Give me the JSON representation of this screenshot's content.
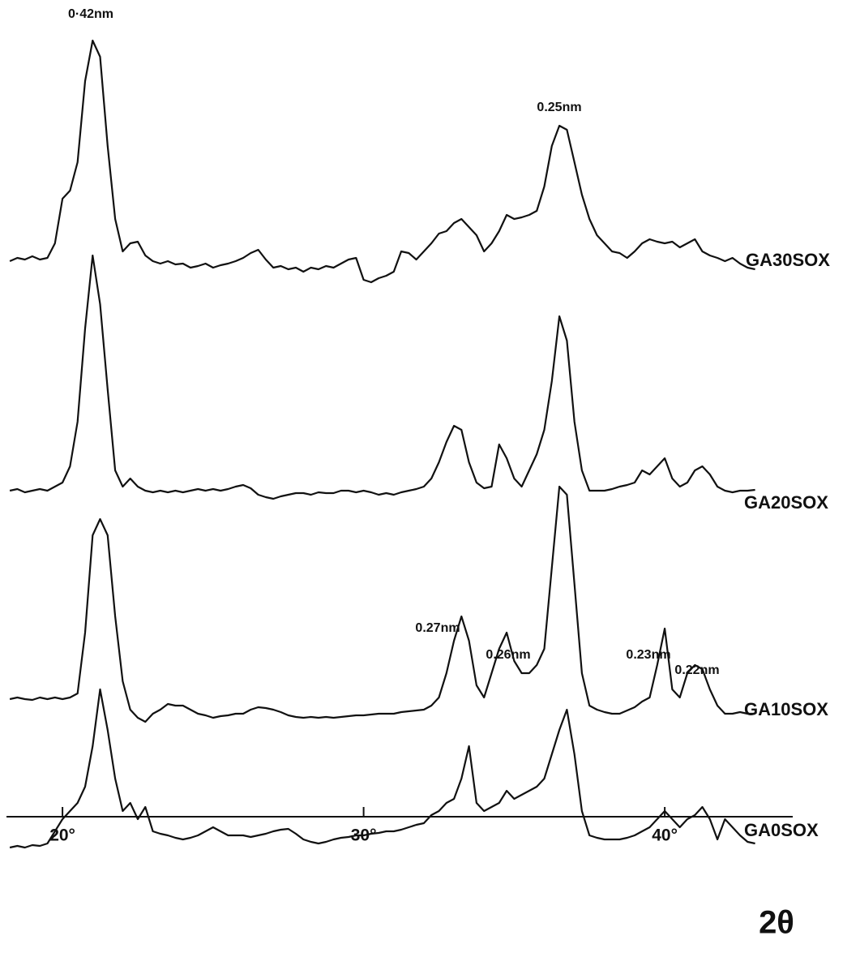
{
  "chart_data": {
    "type": "line",
    "x_label": "2θ",
    "xlim": [
      18.14,
      44.25
    ],
    "xticks": [
      {
        "value": 20,
        "label": "20°"
      },
      {
        "value": 30,
        "label": "30°"
      },
      {
        "value": 40,
        "label": "40°"
      }
    ],
    "color": "#111111",
    "annotations": [
      "0·42nm",
      "0.25nm",
      "0.27nm",
      "0.26nm",
      "0.23nm",
      "0.22nm"
    ],
    "x": [
      18.25,
      18.5,
      18.75,
      19,
      19.25,
      19.5,
      19.75,
      20,
      20.25,
      20.5,
      20.75,
      21,
      21.25,
      21.5,
      21.75,
      22,
      22.25,
      22.5,
      22.75,
      23,
      23.25,
      23.5,
      23.75,
      24,
      24.25,
      24.5,
      24.75,
      25,
      25.25,
      25.5,
      25.75,
      26,
      26.25,
      26.5,
      26.75,
      27,
      27.25,
      27.5,
      27.75,
      28,
      28.25,
      28.5,
      28.75,
      29,
      29.25,
      29.5,
      29.75,
      30,
      30.25,
      30.5,
      30.75,
      31,
      31.25,
      31.5,
      31.75,
      32,
      32.25,
      32.5,
      32.75,
      33,
      33.25,
      33.5,
      33.75,
      34,
      34.25,
      34.5,
      34.75,
      35,
      35.25,
      35.5,
      35.75,
      36,
      36.25,
      36.5,
      36.75,
      37,
      37.25,
      37.5,
      37.75,
      38,
      38.25,
      38.5,
      38.75,
      39,
      39.25,
      39.5,
      39.75,
      40,
      40.25,
      40.5,
      40.75,
      41,
      41.25,
      41.5,
      41.75,
      42,
      42.25,
      42.5,
      42.75,
      43
    ],
    "series": [
      {
        "name": "GA30SOX",
        "values": [
          23,
          27,
          25,
          29,
          25,
          27,
          45,
          100,
          110,
          145,
          245,
          295,
          275,
          165,
          75,
          35,
          45,
          47,
          30,
          23,
          20,
          23,
          19,
          20,
          15,
          17,
          20,
          15,
          18,
          20,
          23,
          27,
          33,
          37,
          25,
          15,
          17,
          13,
          15,
          10,
          15,
          13,
          17,
          15,
          20,
          25,
          27,
          0,
          -3,
          2,
          5,
          10,
          35,
          33,
          25,
          35,
          45,
          57,
          60,
          70,
          75,
          65,
          55,
          35,
          45,
          60,
          80,
          75,
          77,
          80,
          85,
          115,
          165,
          190,
          185,
          145,
          105,
          75,
          55,
          45,
          35,
          33,
          27,
          35,
          45,
          50,
          47,
          45,
          47,
          40,
          45,
          50,
          35,
          30,
          27,
          23,
          27,
          20,
          15,
          13
        ]
      },
      {
        "name": "GA20SOX",
        "values": [
          20,
          22,
          18,
          20,
          22,
          20,
          25,
          30,
          50,
          105,
          220,
          310,
          250,
          145,
          45,
          25,
          35,
          25,
          20,
          18,
          20,
          18,
          20,
          18,
          20,
          22,
          20,
          22,
          20,
          22,
          25,
          27,
          23,
          15,
          12,
          10,
          13,
          15,
          17,
          17,
          15,
          18,
          17,
          17,
          20,
          20,
          18,
          20,
          18,
          15,
          17,
          15,
          18,
          20,
          22,
          25,
          35,
          55,
          80,
          100,
          95,
          55,
          30,
          23,
          25,
          77,
          60,
          35,
          25,
          45,
          65,
          95,
          155,
          235,
          205,
          105,
          45,
          20,
          20,
          20,
          22,
          25,
          27,
          30,
          45,
          40,
          50,
          60,
          35,
          25,
          30,
          45,
          50,
          40,
          25,
          20,
          18,
          20,
          20,
          21
        ]
      },
      {
        "name": "GA10SOX",
        "values": [
          28,
          30,
          28,
          27,
          30,
          28,
          30,
          28,
          30,
          35,
          110,
          230,
          250,
          230,
          130,
          50,
          15,
          5,
          0,
          10,
          15,
          22,
          20,
          20,
          15,
          10,
          8,
          5,
          7,
          8,
          10,
          10,
          15,
          18,
          17,
          15,
          12,
          8,
          6,
          5,
          6,
          5,
          6,
          5,
          6,
          7,
          8,
          8,
          9,
          10,
          10,
          10,
          12,
          13,
          14,
          15,
          20,
          30,
          60,
          100,
          130,
          100,
          45,
          30,
          60,
          90,
          110,
          75,
          60,
          60,
          70,
          90,
          190,
          290,
          280,
          170,
          60,
          20,
          15,
          12,
          10,
          10,
          14,
          18,
          25,
          30,
          70,
          115,
          40,
          30,
          60,
          70,
          65,
          40,
          20,
          10,
          10,
          12,
          10,
          10
        ]
      },
      {
        "name": "GA0SOX",
        "values": [
          5,
          7,
          5,
          8,
          7,
          10,
          25,
          40,
          50,
          60,
          80,
          130,
          200,
          150,
          90,
          50,
          60,
          40,
          55,
          25,
          22,
          20,
          17,
          15,
          17,
          20,
          25,
          30,
          25,
          20,
          20,
          20,
          18,
          20,
          22,
          25,
          27,
          28,
          22,
          15,
          12,
          10,
          12,
          15,
          17,
          18,
          20,
          20,
          22,
          23,
          25,
          25,
          27,
          30,
          33,
          35,
          45,
          50,
          60,
          65,
          90,
          130,
          60,
          50,
          55,
          60,
          75,
          65,
          70,
          75,
          80,
          90,
          120,
          150,
          175,
          120,
          50,
          20,
          17,
          15,
          15,
          15,
          17,
          20,
          25,
          30,
          40,
          50,
          40,
          30,
          40,
          45,
          55,
          40,
          15,
          40,
          30,
          20,
          12,
          10
        ]
      }
    ]
  }
}
